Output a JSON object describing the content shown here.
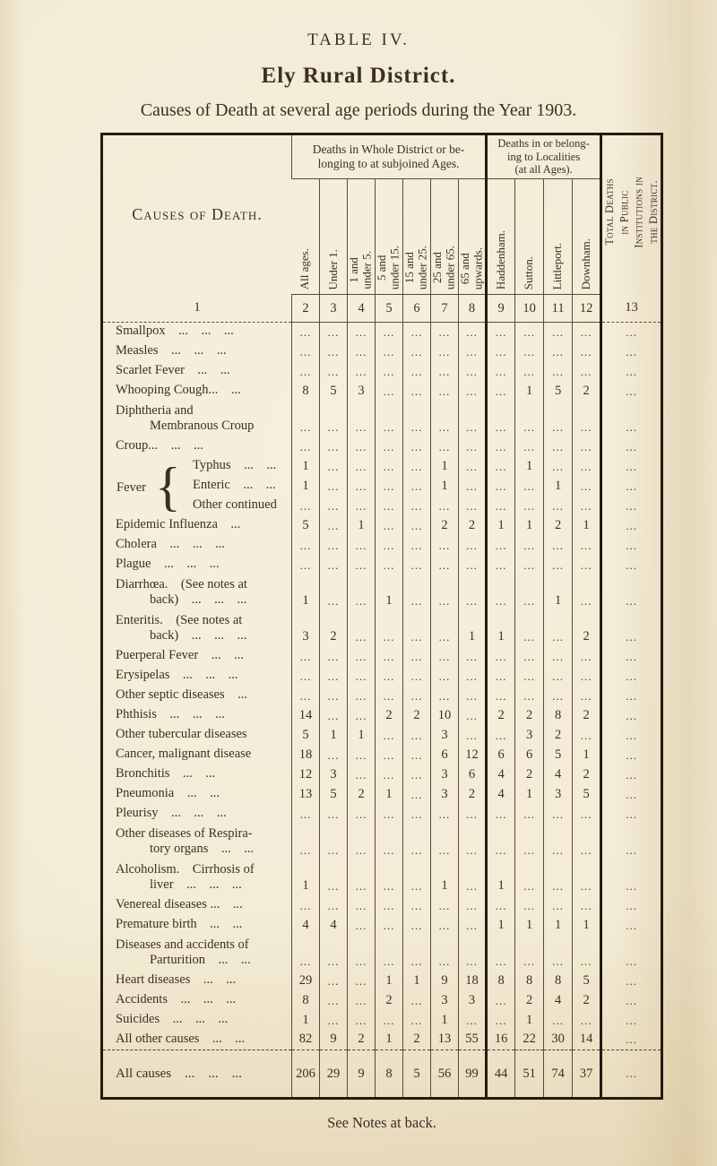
{
  "page": {
    "heading": "TABLE IV.",
    "title": "Ely Rural District.",
    "subtitle": "Causes of Death at several age periods during the Year 1903.",
    "footnote": "See Notes at back."
  },
  "colors": {
    "paper": "#f3ebd5",
    "ink": "#3c2f24",
    "border": "#241b12"
  },
  "table": {
    "causes_header": "Causes of Death.",
    "group_age_header_lines": [
      "Deaths in Whole District or be-",
      "longing to at subjoined Ages."
    ],
    "group_locality_header_lines": [
      "Deaths in or belong-",
      "ing to Localities",
      "(at all Ages)."
    ],
    "institutions_header_lines": [
      "Total Deaths",
      "in Public",
      "Institutions in",
      "the District."
    ],
    "age_columns": [
      [
        "All ages."
      ],
      [
        "Under 1."
      ],
      [
        "1 and",
        "under 5."
      ],
      [
        "5 and",
        "under 15."
      ],
      [
        "15 and",
        "under 25."
      ],
      [
        "25 and",
        "under 65."
      ],
      [
        "65 and",
        "upwards."
      ]
    ],
    "locality_columns": [
      "Haddenham.",
      "Sutton.",
      "Littleport.",
      "Downham."
    ],
    "column_numbers": [
      "1",
      "2",
      "3",
      "4",
      "5",
      "6",
      "7",
      "8",
      "9",
      "10",
      "11",
      "12",
      "13"
    ],
    "fever_group_label": "Fever",
    "empty_cell": "...",
    "rows": [
      {
        "label": "Smallpox ... ... ...",
        "values": [
          "...",
          "...",
          "...",
          "...",
          "...",
          "...",
          "...",
          "...",
          "...",
          "...",
          "...",
          "..."
        ]
      },
      {
        "label": "Measles ... ... ...",
        "values": [
          "...",
          "...",
          "...",
          "...",
          "...",
          "...",
          "...",
          "...",
          "...",
          "...",
          "...",
          "..."
        ]
      },
      {
        "label": "Scarlet Fever ... ...",
        "values": [
          "...",
          "...",
          "...",
          "...",
          "...",
          "...",
          "...",
          "...",
          "...",
          "...",
          "...",
          "..."
        ]
      },
      {
        "label": "Whooping Cough... ...",
        "values": [
          "8",
          "5",
          "3",
          "...",
          "...",
          "...",
          "...",
          "...",
          "1",
          "5",
          "2",
          "..."
        ]
      },
      {
        "label": "Diphtheria and",
        "label2": "Membranous Croup",
        "values": [
          "...",
          "...",
          "...",
          "...",
          "...",
          "...",
          "...",
          "...",
          "...",
          "...",
          "...",
          "..."
        ]
      },
      {
        "label": "Croup... ... ...",
        "values": [
          "...",
          "...",
          "...",
          "...",
          "...",
          "...",
          "...",
          "...",
          "...",
          "...",
          "...",
          "..."
        ]
      },
      {
        "label": "Typhus ... ...",
        "fever": true,
        "fever_first": true,
        "values": [
          "1",
          "...",
          "...",
          "...",
          "...",
          "1",
          "...",
          "...",
          "1",
          "...",
          "...",
          "..."
        ]
      },
      {
        "label": "Enteric ... ...",
        "fever": true,
        "values": [
          "1",
          "...",
          "...",
          "...",
          "...",
          "1",
          "...",
          "...",
          "...",
          "1",
          "...",
          "..."
        ]
      },
      {
        "label": "Other continued",
        "fever": true,
        "values": [
          "...",
          "...",
          "...",
          "...",
          "...",
          "...",
          "...",
          "...",
          "...",
          "...",
          "...",
          "..."
        ]
      },
      {
        "label": "Epidemic Influenza ...",
        "values": [
          "5",
          "...",
          "1",
          "...",
          "...",
          "2",
          "2",
          "1",
          "1",
          "2",
          "1",
          "..."
        ]
      },
      {
        "label": "Cholera ... ... ...",
        "values": [
          "...",
          "...",
          "...",
          "...",
          "...",
          "...",
          "...",
          "...",
          "...",
          "...",
          "...",
          "..."
        ]
      },
      {
        "label": "Plague ... ... ...",
        "values": [
          "...",
          "...",
          "...",
          "...",
          "...",
          "...",
          "...",
          "...",
          "...",
          "...",
          "...",
          "..."
        ]
      },
      {
        "label": "Diarrhœa. (See notes at",
        "label2": "back) ... ... ...",
        "values": [
          "1",
          "...",
          "...",
          "1",
          "...",
          "...",
          "...",
          "...",
          "...",
          "1",
          "...",
          "..."
        ]
      },
      {
        "label": "Enteritis. (See notes at",
        "label2": "back) ... ... ...",
        "values": [
          "3",
          "2",
          "...",
          "...",
          "...",
          "...",
          "1",
          "1",
          "...",
          "...",
          "2",
          "..."
        ]
      },
      {
        "label": "Puerperal Fever ... ...",
        "values": [
          "...",
          "...",
          "...",
          "...",
          "...",
          "...",
          "...",
          "...",
          "...",
          "...",
          "...",
          "..."
        ]
      },
      {
        "label": "Erysipelas ... ... ...",
        "values": [
          "...",
          "...",
          "...",
          "...",
          "...",
          "...",
          "...",
          "...",
          "...",
          "...",
          "...",
          "..."
        ]
      },
      {
        "label": "Other septic diseases ...",
        "values": [
          "...",
          "...",
          "...",
          "...",
          "...",
          "...",
          "...",
          "...",
          "...",
          "...",
          "...",
          "..."
        ]
      },
      {
        "label": "Phthisis ... ... ...",
        "values": [
          "14",
          "...",
          "...",
          "2",
          "2",
          "10",
          "...",
          "2",
          "2",
          "8",
          "2",
          "..."
        ]
      },
      {
        "label": "Other tubercular diseases",
        "values": [
          "5",
          "1",
          "1",
          "...",
          "...",
          "3",
          "...",
          "...",
          "3",
          "2",
          "...",
          "..."
        ]
      },
      {
        "label": "Cancer, malignant disease",
        "values": [
          "18",
          "...",
          "...",
          "...",
          "...",
          "6",
          "12",
          "6",
          "6",
          "5",
          "1",
          "..."
        ]
      },
      {
        "label": "Bronchitis ... ...",
        "values": [
          "12",
          "3",
          "...",
          "...",
          "...",
          "3",
          "6",
          "4",
          "2",
          "4",
          "2",
          "..."
        ]
      },
      {
        "label": "Pneumonia ... ...",
        "values": [
          "13",
          "5",
          "2",
          "1",
          "...",
          "3",
          "2",
          "4",
          "1",
          "3",
          "5",
          "..."
        ]
      },
      {
        "label": "Pleurisy ... ... ...",
        "values": [
          "...",
          "...",
          "...",
          "...",
          "...",
          "...",
          "...",
          "...",
          "...",
          "...",
          "...",
          "..."
        ]
      },
      {
        "label": "Other diseases of Respira-",
        "label2": "tory organs ... ...",
        "values": [
          "...",
          "...",
          "...",
          "...",
          "...",
          "...",
          "...",
          "...",
          "...",
          "...",
          "...",
          "..."
        ]
      },
      {
        "label": "Alcoholism. Cirrhosis of",
        "label2": "liver ... ... ...",
        "values": [
          "1",
          "...",
          "...",
          "...",
          "...",
          "1",
          "...",
          "1",
          "...",
          "...",
          "...",
          "..."
        ]
      },
      {
        "label": "Venereal diseases ... ...",
        "values": [
          "...",
          "...",
          "...",
          "...",
          "...",
          "...",
          "...",
          "...",
          "...",
          "...",
          "...",
          "..."
        ]
      },
      {
        "label": "Premature birth ... ...",
        "values": [
          "4",
          "4",
          "...",
          "...",
          "...",
          "...",
          "...",
          "1",
          "1",
          "1",
          "1",
          "..."
        ]
      },
      {
        "label": "Diseases and accidents of",
        "label2": "Parturition ... ...",
        "values": [
          "...",
          "...",
          "...",
          "...",
          "...",
          "...",
          "...",
          "...",
          "...",
          "...",
          "...",
          "..."
        ]
      },
      {
        "label": "Heart diseases ... ...",
        "values": [
          "29",
          "...",
          "...",
          "1",
          "1",
          "9",
          "18",
          "8",
          "8",
          "8",
          "5",
          "..."
        ]
      },
      {
        "label": "Accidents ... ... ...",
        "values": [
          "8",
          "...",
          "...",
          "2",
          "...",
          "3",
          "3",
          "...",
          "2",
          "4",
          "2",
          "..."
        ]
      },
      {
        "label": "Suicides ... ... ...",
        "values": [
          "1",
          "...",
          "...",
          "...",
          "...",
          "1",
          "...",
          "...",
          "1",
          "...",
          "...",
          "..."
        ]
      },
      {
        "label": "All other causes ... ...",
        "values": [
          "82",
          "9",
          "2",
          "1",
          "2",
          "13",
          "55",
          "16",
          "22",
          "30",
          "14",
          "..."
        ]
      }
    ],
    "total": {
      "label": "All causes ... ... ...",
      "values": [
        "206",
        "29",
        "9",
        "8",
        "5",
        "56",
        "99",
        "44",
        "51",
        "74",
        "37",
        "..."
      ]
    }
  }
}
